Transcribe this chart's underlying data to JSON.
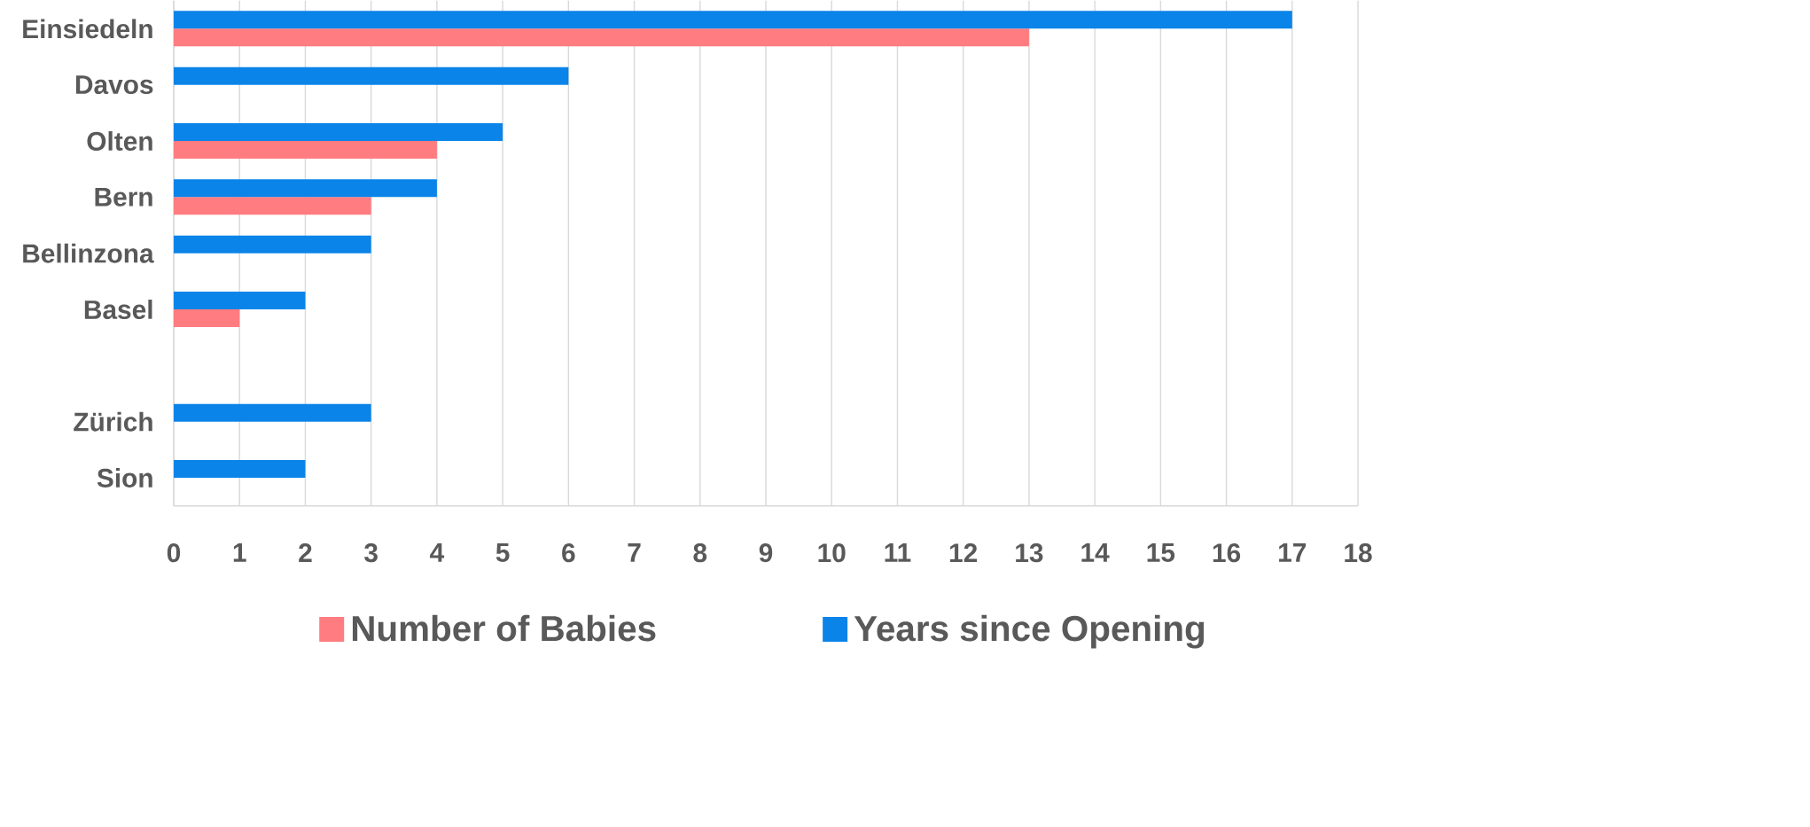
{
  "chart_data": {
    "type": "bar",
    "orientation": "horizontal",
    "categories": [
      "Einsiedeln",
      "Davos",
      "Olten",
      "Bern",
      "Bellinzona",
      "Basel",
      null,
      "Zürich",
      "Sion"
    ],
    "series": [
      {
        "name": "Number of Babies",
        "color": "#ff7c80",
        "values": [
          13,
          null,
          4,
          3,
          null,
          1,
          null,
          null,
          null
        ]
      },
      {
        "name": "Years since Opening",
        "color": "#0a84e8",
        "values": [
          17,
          6,
          5,
          4,
          3,
          2,
          null,
          3,
          2
        ]
      }
    ],
    "xlim": [
      0,
      18
    ],
    "xticks": [
      0,
      1,
      2,
      3,
      4,
      5,
      6,
      7,
      8,
      9,
      10,
      11,
      12,
      13,
      14,
      15,
      16,
      17,
      18
    ],
    "grid": "x",
    "legend": "bottom"
  }
}
